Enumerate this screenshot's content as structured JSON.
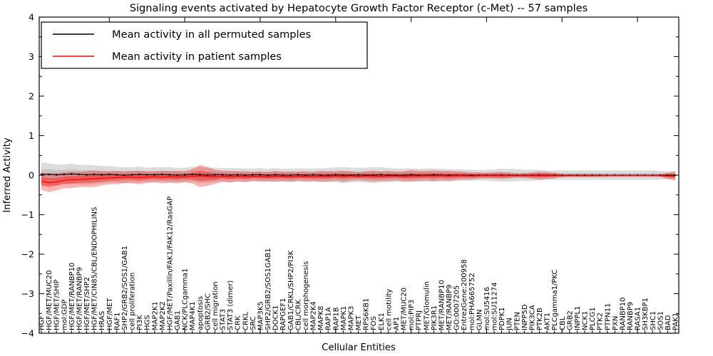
{
  "figure": {
    "title": "Signaling events activated by Hepatocyte Growth Factor Receptor (c-Met) -- 57 samples"
  },
  "chart_data": {
    "type": "line",
    "title": "Signaling events activated by Hepatocyte Growth Factor Receptor (c-Met) -- 57 samples",
    "xlabel": "Cellular Entities",
    "ylabel": "Inferred Activity",
    "ylim": [
      -4,
      4
    ],
    "ytick_step": 1,
    "ytick_labels": [
      "4",
      "3",
      "2",
      "1",
      "0",
      "−1",
      "−2",
      "−3",
      "−4"
    ],
    "xtick_major_every": 10,
    "grid": false,
    "legend_position": "upper left",
    "colors": {
      "permuted_line": "#000000",
      "patient_line": "#ff0000",
      "permuted_band": "#bdbdbd",
      "patient_band": "#ff0000",
      "axes": "#000000",
      "background": "#ffffff"
    },
    "categories": [
      "HGF",
      "HGF/MET/MUC20",
      "HGF/MET/SHIP",
      "mol:GDP",
      "HGF/MET/RANBP10",
      "HGF/MET/RANBP9",
      "HGF/MET/SHP2",
      "HGF/MET/CIN85/CBL/ENDOPHILINS",
      "HRAS",
      "HGF/MET",
      "RAF1",
      "SHP2/GRB2/SOS1/GAB1",
      "cell proliferation",
      "PI3K",
      "HGS",
      "MAP2K1",
      "MAP2K2",
      "HGF/MET/Paxillin/FAK1/FAK12/RasGAP",
      "GAB1",
      "NCK/PLCgamma1",
      "MAP4K1",
      "apoptosis",
      "GRB2/SHC",
      "cell migration",
      "STAT3",
      "STAT3 (dimer)",
      "CRK",
      "CRKL",
      "SRC",
      "MAP3K5",
      "SHP2/GRB2/SOS1GAB1",
      "DOCK1",
      "RAPGEF1",
      "GAB1/CRKL/SHP2/PI3K",
      "CBL/CRK",
      "cell morphogenesis",
      "MAP2K4",
      "MAPK8",
      "RAP1A",
      "RAP1B",
      "MAPK1",
      "MAPK3",
      "MET",
      "RPS6KB1",
      "FOS",
      "ELK1",
      "cell motility",
      "AP1",
      "MET/MUC20",
      "mol:PIP3",
      "PTPRJ",
      "MET/Glomulin",
      "PIK3R1",
      "MET/RANBP10",
      "MET/RANBP9",
      "GO:0007205",
      "EntrezGene:200958",
      "mol:PHA665752",
      "GLMN",
      "mol:SU5416",
      "mol:SU11274",
      "PDPK1",
      "JUN",
      "PTEN",
      "INPP5D",
      "PIK3CA",
      "PTK2B",
      "AKT1",
      "PLCgamma1/PKC",
      "CBL",
      "GRB2",
      "INPPL1",
      "NCK1",
      "PLCG1",
      "PTK2",
      "PTPN11",
      "PXN",
      "RANBP10",
      "RANBP9",
      "RASA1",
      "SH3KBP1",
      "SHC1",
      "SOS1",
      "BAD",
      "PAK1"
    ],
    "series": [
      {
        "name": "Mean activity in all permuted samples",
        "color": "#000000",
        "values": [
          0.02,
          0.02,
          0.01,
          0.02,
          0.03,
          0.02,
          0.01,
          0.02,
          0.01,
          0.02,
          0.01,
          0.0,
          0.01,
          0.02,
          0.01,
          0.01,
          0.02,
          0.01,
          0.0,
          0.01,
          0.02,
          0.01,
          0.0,
          0.01,
          0.01,
          0.0,
          0.01,
          0.0,
          0.01,
          0.01,
          0.0,
          0.01,
          0.0,
          0.0,
          0.01,
          0.0,
          0.01,
          0.0,
          0.0,
          0.01,
          0.0,
          0.0,
          0.01,
          0.0,
          0.0,
          0.01,
          0.0,
          0.0,
          0.0,
          0.01,
          0.0,
          0.0,
          0.01,
          0.0,
          0.0,
          0.0,
          0.0,
          0.0,
          0.0,
          0.0,
          0.0,
          0.0,
          0.0,
          0.0,
          0.0,
          0.0,
          0.0,
          0.0,
          0.0,
          0.0,
          0.0,
          0.0,
          0.0,
          0.0,
          0.0,
          0.0,
          0.0,
          0.0,
          0.0,
          0.0,
          0.0,
          0.0,
          0.0,
          0.0,
          0.0
        ],
        "band_halfwidth": [
          0.3,
          0.28,
          0.26,
          0.25,
          0.26,
          0.24,
          0.25,
          0.23,
          0.22,
          0.21,
          0.2,
          0.2,
          0.19,
          0.2,
          0.18,
          0.19,
          0.18,
          0.19,
          0.18,
          0.18,
          0.19,
          0.2,
          0.19,
          0.18,
          0.17,
          0.18,
          0.17,
          0.17,
          0.16,
          0.17,
          0.16,
          0.17,
          0.16,
          0.17,
          0.16,
          0.17,
          0.16,
          0.17,
          0.18,
          0.19,
          0.2,
          0.19,
          0.18,
          0.19,
          0.2,
          0.19,
          0.18,
          0.17,
          0.17,
          0.16,
          0.16,
          0.17,
          0.16,
          0.16,
          0.15,
          0.15,
          0.14,
          0.14,
          0.13,
          0.14,
          0.15,
          0.16,
          0.16,
          0.15,
          0.14,
          0.14,
          0.13,
          0.12,
          0.12,
          0.12,
          0.12,
          0.12,
          0.12,
          0.12,
          0.12,
          0.12,
          0.12,
          0.12,
          0.12,
          0.12,
          0.12,
          0.12,
          0.11,
          0.1,
          0.1
        ]
      },
      {
        "name": "Mean activity in patient samples",
        "color": "#ff0000",
        "values": [
          -0.15,
          -0.19,
          -0.17,
          -0.13,
          -0.12,
          -0.11,
          -0.1,
          -0.09,
          -0.08,
          -0.07,
          -0.06,
          -0.05,
          -0.05,
          -0.06,
          -0.05,
          -0.04,
          -0.05,
          -0.04,
          -0.05,
          -0.04,
          -0.03,
          -0.02,
          -0.03,
          -0.04,
          -0.03,
          -0.04,
          -0.03,
          -0.04,
          -0.03,
          -0.03,
          -0.04,
          -0.03,
          -0.03,
          -0.04,
          -0.03,
          -0.03,
          -0.04,
          -0.03,
          -0.03,
          -0.02,
          -0.03,
          -0.02,
          -0.03,
          -0.02,
          -0.02,
          -0.03,
          -0.02,
          -0.02,
          -0.03,
          -0.02,
          -0.02,
          -0.01,
          -0.02,
          -0.01,
          -0.02,
          -0.01,
          -0.01,
          -0.02,
          -0.01,
          -0.01,
          -0.01,
          -0.01,
          -0.01,
          -0.01,
          -0.01,
          -0.01,
          -0.01,
          -0.01,
          -0.01,
          -0.01,
          -0.01,
          -0.01,
          -0.01,
          -0.01,
          -0.01,
          -0.01,
          -0.01,
          -0.01,
          -0.01,
          -0.01,
          -0.01,
          -0.01,
          -0.01,
          -0.02,
          -0.02
        ],
        "band_halfwidth": [
          0.22,
          0.24,
          0.22,
          0.2,
          0.21,
          0.19,
          0.2,
          0.21,
          0.18,
          0.16,
          0.17,
          0.15,
          0.16,
          0.17,
          0.15,
          0.14,
          0.16,
          0.15,
          0.16,
          0.14,
          0.18,
          0.28,
          0.24,
          0.18,
          0.14,
          0.15,
          0.13,
          0.14,
          0.12,
          0.13,
          0.12,
          0.14,
          0.12,
          0.13,
          0.12,
          0.13,
          0.12,
          0.14,
          0.13,
          0.12,
          0.14,
          0.12,
          0.1,
          0.12,
          0.14,
          0.12,
          0.13,
          0.11,
          0.13,
          0.15,
          0.13,
          0.12,
          0.14,
          0.12,
          0.13,
          0.11,
          0.1,
          0.09,
          0.08,
          0.07,
          0.08,
          0.09,
          0.07,
          0.05,
          0.06,
          0.08,
          0.1,
          0.09,
          0.07,
          0.04,
          0.03,
          0.03,
          0.03,
          0.03,
          0.03,
          0.02,
          0.02,
          0.02,
          0.02,
          0.02,
          0.02,
          0.02,
          0.03,
          0.08,
          0.12
        ]
      }
    ]
  },
  "legend": {
    "entries": [
      {
        "label": "Mean activity in all permuted samples",
        "color": "#000000"
      },
      {
        "label": "Mean activity in patient samples",
        "color": "#ff0000"
      }
    ]
  }
}
